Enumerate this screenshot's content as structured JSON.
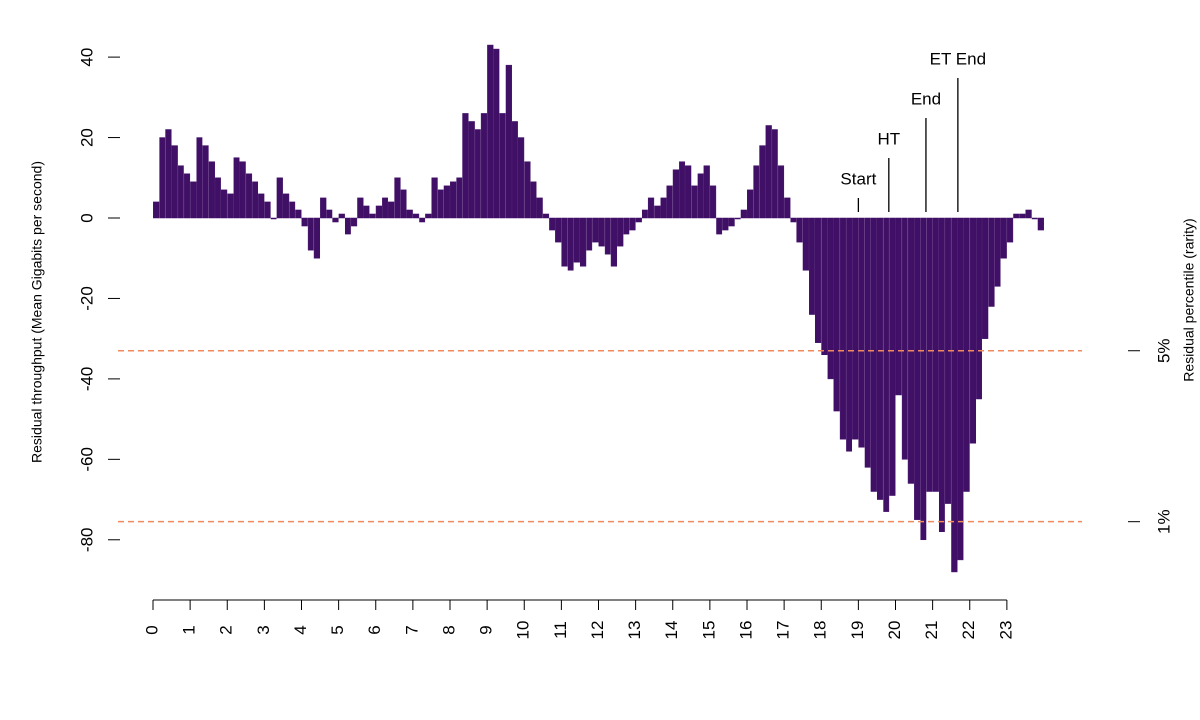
{
  "chart_data": {
    "type": "bar",
    "y_label": "Residual throughput (Mean Gigabits per second)",
    "y2_label": "Residual percentile (rarity)",
    "color": "#400f66",
    "xlim": [
      0,
      24
    ],
    "xticks": [
      0,
      1,
      2,
      3,
      4,
      5,
      6,
      7,
      8,
      9,
      10,
      11,
      12,
      13,
      14,
      15,
      16,
      17,
      18,
      19,
      20,
      21,
      22,
      23
    ],
    "ylim": [
      -90,
      45
    ],
    "yticks": [
      -80,
      -60,
      -40,
      -20,
      0,
      20,
      40
    ],
    "x": [
      0,
      0.17,
      0.33,
      0.5,
      0.67,
      0.83,
      1,
      1.17,
      1.33,
      1.5,
      1.67,
      1.83,
      2,
      2.17,
      2.33,
      2.5,
      2.67,
      2.83,
      3,
      3.17,
      3.33,
      3.5,
      3.67,
      3.83,
      4,
      4.17,
      4.33,
      4.5,
      4.67,
      4.83,
      5,
      5.17,
      5.33,
      5.5,
      5.67,
      5.83,
      6,
      6.17,
      6.33,
      6.5,
      6.67,
      6.83,
      7,
      7.17,
      7.33,
      7.5,
      7.67,
      7.83,
      8,
      8.17,
      8.33,
      8.5,
      8.67,
      8.83,
      9,
      9.17,
      9.33,
      9.5,
      9.67,
      9.83,
      10,
      10.17,
      10.33,
      10.5,
      10.67,
      10.83,
      11,
      11.17,
      11.33,
      11.5,
      11.67,
      11.83,
      12,
      12.17,
      12.33,
      12.5,
      12.67,
      12.83,
      13,
      13.17,
      13.33,
      13.5,
      13.67,
      13.83,
      14,
      14.17,
      14.33,
      14.5,
      14.67,
      14.83,
      15,
      15.17,
      15.33,
      15.5,
      15.67,
      15.83,
      16,
      16.17,
      16.33,
      16.5,
      16.67,
      16.83,
      17,
      17.17,
      17.33,
      17.5,
      17.67,
      17.83,
      18,
      18.17,
      18.33,
      18.5,
      18.67,
      18.83,
      19,
      19.17,
      19.33,
      19.5,
      19.67,
      19.83,
      20,
      20.17,
      20.33,
      20.5,
      20.67,
      20.83,
      21,
      21.17,
      21.33,
      21.5,
      21.67,
      21.83,
      22,
      22.17,
      22.33,
      22.5,
      22.67,
      22.83,
      23,
      23.17,
      23.33,
      23.5,
      23.67,
      23.83
    ],
    "values": [
      4,
      20,
      22,
      18,
      13,
      11,
      9,
      20,
      18,
      14,
      10,
      7,
      6,
      15,
      14,
      11,
      9,
      6,
      4,
      0,
      10,
      6,
      4,
      2,
      -2,
      -8,
      -10,
      5,
      2,
      -1,
      1,
      -4,
      -2,
      5,
      3,
      1,
      3,
      5,
      4,
      10,
      7,
      2,
      1,
      -1,
      1,
      10,
      7,
      8,
      9,
      10,
      26,
      24,
      22,
      26,
      43,
      42,
      26,
      38,
      24,
      20,
      14,
      9,
      5,
      1,
      -3,
      -6,
      -12,
      -13,
      -11,
      -12,
      -8,
      -6,
      -7,
      -9,
      -12,
      -7,
      -4,
      -3,
      -1,
      2,
      5,
      3,
      5,
      8,
      12,
      14,
      13,
      8,
      11,
      13,
      8,
      -4,
      -3,
      -2,
      0,
      2,
      7,
      13,
      18,
      23,
      22,
      13,
      5,
      -1,
      -6,
      -13,
      -24,
      -31,
      -34,
      -40,
      -48,
      -55,
      -58,
      -55,
      -57,
      -62,
      -68,
      -70,
      -73,
      -69,
      -44,
      -60,
      -66,
      -75,
      -80,
      -68,
      -68,
      -78,
      -71,
      -88,
      -85,
      -68,
      -56,
      -45,
      -30,
      -22,
      -17,
      -10,
      -6,
      1,
      1,
      2,
      0,
      -3
    ],
    "thresholds": [
      {
        "value": -33,
        "label": "5%"
      },
      {
        "value": -75.5,
        "label": "1%"
      }
    ],
    "threshold_color": "#f08a5d",
    "annotations": [
      {
        "label": "Start",
        "x": 19
      },
      {
        "label": "HT",
        "x": 19.82
      },
      {
        "label": "End",
        "x": 20.82
      },
      {
        "label": "ET End",
        "x": 21.68
      }
    ]
  }
}
